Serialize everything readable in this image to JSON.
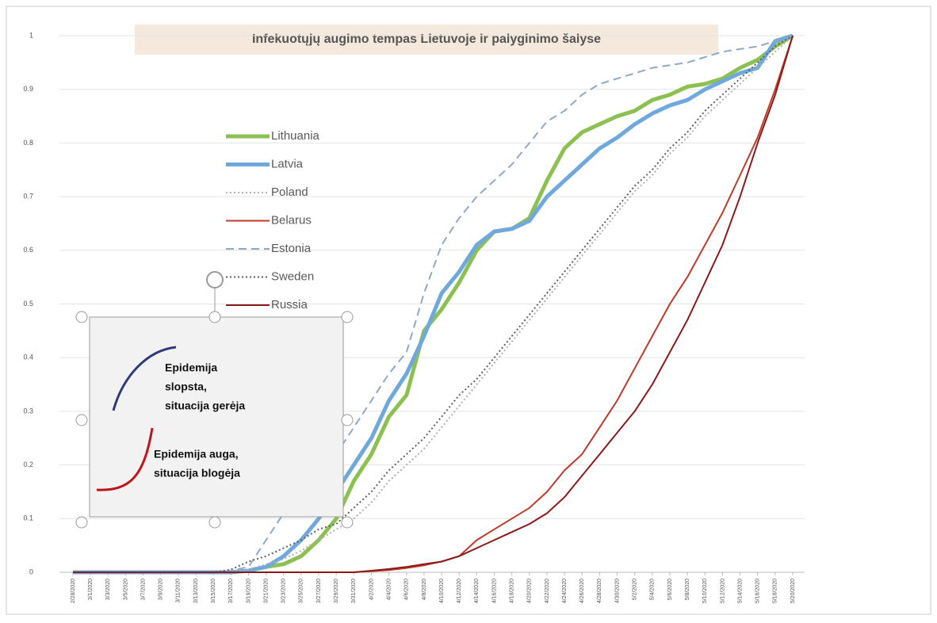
{
  "chart_data": {
    "type": "line",
    "title": "Infekuotųjų augimo tempas Lietuvoje ir palyginimo šalyse",
    "categories": [
      "2/28/2020",
      "3/1/2020",
      "3/3/2020",
      "3/5/2020",
      "3/7/2020",
      "3/9/2020",
      "3/11/2020",
      "3/13/2020",
      "3/15/2020",
      "3/17/2020",
      "3/19/2020",
      "3/21/2020",
      "3/23/2020",
      "3/25/2020",
      "3/27/2020",
      "3/29/2020",
      "3/31/2020",
      "4/2/2020",
      "4/4/2020",
      "4/6/2020",
      "4/8/2020",
      "4/10/2020",
      "4/12/2020",
      "4/14/2020",
      "4/16/2020",
      "4/18/2020",
      "4/20/2020",
      "4/22/2020",
      "4/24/2020",
      "4/26/2020",
      "4/28/2020",
      "4/30/2020",
      "5/2/2020",
      "5/4/2020",
      "5/6/2020",
      "5/8/2020",
      "5/10/2020",
      "5/12/2020",
      "5/14/2020",
      "5/16/2020",
      "5/18/2020",
      "5/20/2020"
    ],
    "series": [
      {
        "name": "Lithuania",
        "color": "#8cc152",
        "style": "solid",
        "width": 5,
        "values": [
          0,
          0,
          0,
          0,
          0,
          0,
          0,
          0,
          0,
          0,
          0.003,
          0.01,
          0.015,
          0.03,
          0.06,
          0.1,
          0.17,
          0.22,
          0.29,
          0.33,
          0.45,
          0.49,
          0.54,
          0.6,
          0.635,
          0.64,
          0.66,
          0.73,
          0.79,
          0.82,
          0.835,
          0.85,
          0.86,
          0.88,
          0.89,
          0.905,
          0.91,
          0.92,
          0.94,
          0.955,
          0.98,
          1
        ]
      },
      {
        "name": "Latvia",
        "color": "#6fa8dc",
        "style": "solid",
        "width": 5,
        "values": [
          0,
          0,
          0,
          0,
          0,
          0,
          0,
          0,
          0,
          0,
          0.003,
          0.01,
          0.03,
          0.06,
          0.1,
          0.15,
          0.2,
          0.25,
          0.32,
          0.37,
          0.44,
          0.52,
          0.56,
          0.61,
          0.635,
          0.64,
          0.655,
          0.7,
          0.73,
          0.76,
          0.79,
          0.81,
          0.835,
          0.855,
          0.87,
          0.88,
          0.9,
          0.915,
          0.93,
          0.94,
          0.99,
          1
        ]
      },
      {
        "name": "Poland",
        "color": "#b0b0b0",
        "style": "dotted",
        "width": 2,
        "values": [
          0,
          0,
          0,
          0,
          0,
          0,
          0,
          0,
          0,
          0,
          0.005,
          0.015,
          0.025,
          0.04,
          0.06,
          0.08,
          0.1,
          0.13,
          0.17,
          0.2,
          0.23,
          0.27,
          0.31,
          0.35,
          0.39,
          0.43,
          0.47,
          0.51,
          0.55,
          0.59,
          0.63,
          0.67,
          0.71,
          0.74,
          0.78,
          0.81,
          0.85,
          0.88,
          0.91,
          0.94,
          0.97,
          1
        ]
      },
      {
        "name": "Belarus",
        "color": "#c0392b",
        "style": "solid",
        "width": 2,
        "values": [
          0,
          0,
          0,
          0,
          0,
          0,
          0,
          0,
          0,
          0,
          0,
          0,
          0,
          0,
          0,
          0,
          0,
          0.002,
          0.004,
          0.008,
          0.013,
          0.02,
          0.03,
          0.06,
          0.08,
          0.1,
          0.12,
          0.15,
          0.19,
          0.22,
          0.27,
          0.32,
          0.38,
          0.44,
          0.5,
          0.55,
          0.61,
          0.67,
          0.74,
          0.81,
          0.9,
          1
        ]
      },
      {
        "name": "Estonia",
        "color": "#8ea9c8",
        "style": "dashed",
        "width": 2,
        "values": [
          0,
          0,
          0,
          0,
          0,
          0,
          0,
          0,
          0,
          0.003,
          0.01,
          0.06,
          0.11,
          0.14,
          0.17,
          0.22,
          0.27,
          0.32,
          0.37,
          0.41,
          0.52,
          0.61,
          0.66,
          0.7,
          0.73,
          0.76,
          0.8,
          0.84,
          0.86,
          0.89,
          0.91,
          0.92,
          0.93,
          0.94,
          0.945,
          0.95,
          0.96,
          0.97,
          0.975,
          0.98,
          0.99,
          1
        ]
      },
      {
        "name": "Sweden",
        "color": "#606060",
        "style": "dotted",
        "width": 2,
        "values": [
          0,
          0,
          0,
          0,
          0,
          0,
          0,
          0,
          0,
          0.005,
          0.02,
          0.03,
          0.045,
          0.06,
          0.08,
          0.09,
          0.12,
          0.15,
          0.19,
          0.22,
          0.25,
          0.29,
          0.33,
          0.36,
          0.4,
          0.44,
          0.48,
          0.52,
          0.56,
          0.6,
          0.64,
          0.68,
          0.72,
          0.75,
          0.79,
          0.82,
          0.86,
          0.89,
          0.92,
          0.95,
          0.98,
          1
        ]
      },
      {
        "name": "Russia",
        "color": "#8b1a1a",
        "style": "solid",
        "width": 2,
        "values": [
          0,
          0,
          0,
          0,
          0,
          0,
          0,
          0,
          0,
          0,
          0,
          0,
          0,
          0,
          0,
          0,
          0,
          0.003,
          0.006,
          0.01,
          0.015,
          0.02,
          0.03,
          0.045,
          0.06,
          0.075,
          0.09,
          0.11,
          0.14,
          0.18,
          0.22,
          0.26,
          0.3,
          0.35,
          0.41,
          0.47,
          0.54,
          0.61,
          0.7,
          0.8,
          0.89,
          1
        ]
      }
    ],
    "ylim": [
      0,
      1
    ],
    "yticks": [
      0,
      0.1,
      0.2,
      0.3,
      0.4,
      0.5,
      0.6,
      0.7,
      0.8,
      0.9,
      1
    ],
    "grid": true,
    "annotations": [
      {
        "lines": [
          "Epidemija",
          "slopsta,",
          "situacija gerėja"
        ],
        "color": "#2e3a7a"
      },
      {
        "lines": [
          "Epidemija auga,",
          "situacija blogėja"
        ],
        "color": "#c0141c"
      }
    ]
  }
}
